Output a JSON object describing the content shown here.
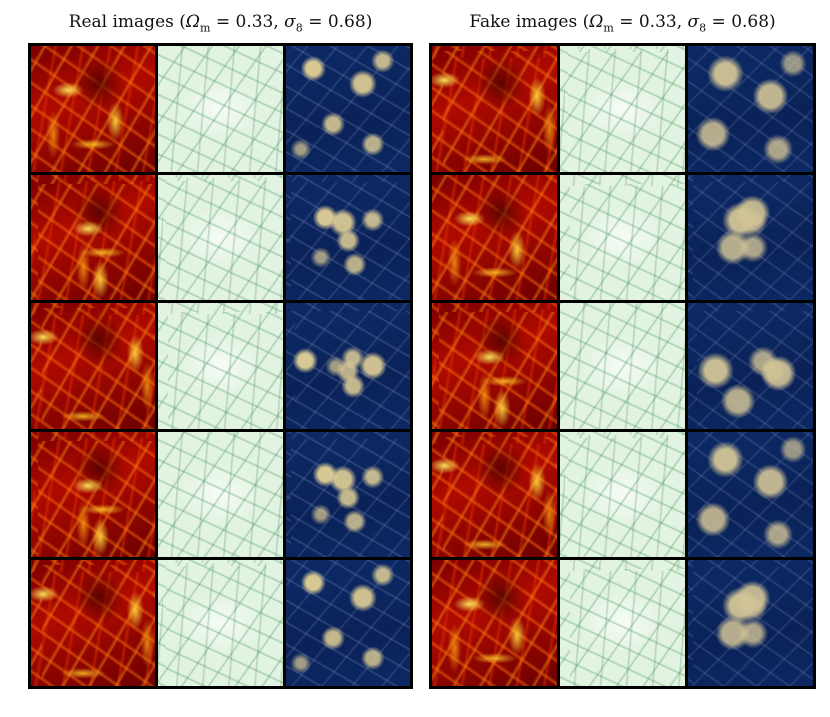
{
  "panels": [
    {
      "title_prefix": "Real images",
      "omega_symbol": "Ω",
      "omega_sub": "m",
      "omega_value": "= 0.33",
      "sigma_symbol": "σ",
      "sigma_sub": "8",
      "sigma_value": "= 0.68"
    },
    {
      "title_prefix": "Fake images",
      "omega_symbol": "Ω",
      "omega_sub": "m",
      "omega_value": "= 0.33",
      "sigma_symbol": "σ",
      "sigma_sub": "8",
      "sigma_value": "= 0.68"
    }
  ],
  "grid": {
    "rows": 5,
    "columns": [
      "density-hot-colormap",
      "gas-green-colormap",
      "temperature-navy-gold-colormap"
    ]
  },
  "colors": {
    "border": "#000000",
    "density_dark": "#7a0000",
    "density_bright": "#ffeb5a",
    "gas_background": "#e6f4e5",
    "gas_filament": "#288c46",
    "temp_background": "#0a2258",
    "temp_blob": "#e2d096"
  }
}
